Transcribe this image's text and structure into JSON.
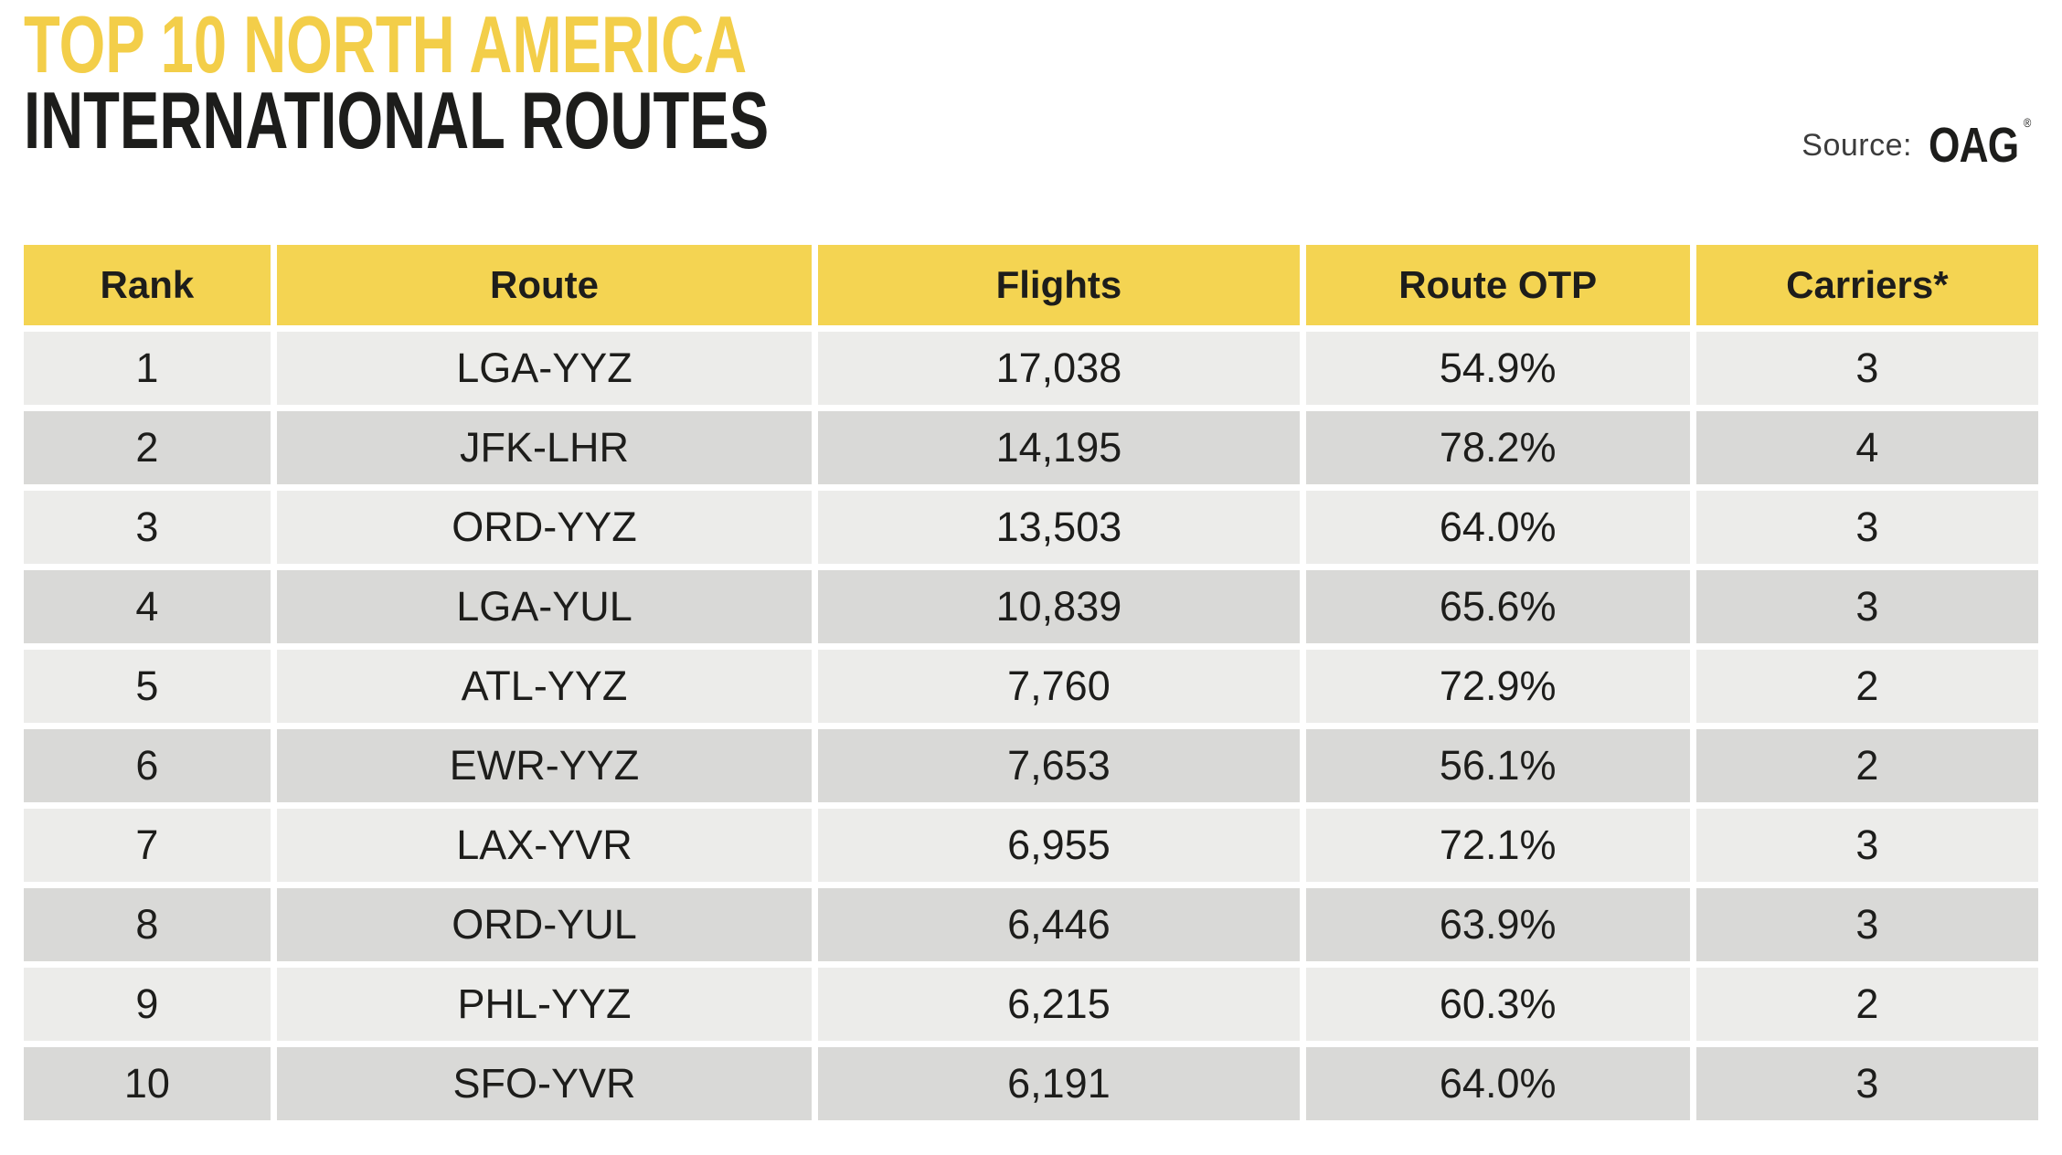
{
  "title": {
    "line1": "TOP 10 NORTH AMERICA",
    "line2": "INTERNATIONAL ROUTES"
  },
  "source": {
    "label": "Source:",
    "brand": "OAG",
    "mark": "®"
  },
  "chart_data": {
    "type": "table",
    "title": "Top 10 North America International Routes",
    "columns": [
      "Rank",
      "Route",
      "Flights",
      "Route OTP",
      "Carriers*"
    ],
    "rows": [
      [
        "1",
        "LGA-YYZ",
        "17,038",
        "54.9%",
        "3"
      ],
      [
        "2",
        "JFK-LHR",
        "14,195",
        "78.2%",
        "4"
      ],
      [
        "3",
        "ORD-YYZ",
        "13,503",
        "64.0%",
        "3"
      ],
      [
        "4",
        "LGA-YUL",
        "10,839",
        "65.6%",
        "3"
      ],
      [
        "5",
        "ATL-YYZ",
        "7,760",
        "72.9%",
        "2"
      ],
      [
        "6",
        "EWR-YYZ",
        "7,653",
        "56.1%",
        "2"
      ],
      [
        "7",
        "LAX-YVR",
        "6,955",
        "72.1%",
        "3"
      ],
      [
        "8",
        "ORD-YUL",
        "6,446",
        "63.9%",
        "3"
      ],
      [
        "9",
        "PHL-YYZ",
        "6,215",
        "60.3%",
        "2"
      ],
      [
        "10",
        "SFO-YVR",
        "6,191",
        "64.0%",
        "3"
      ]
    ],
    "source": "OAG",
    "layout": {
      "header_background": "#F4D452",
      "row_stripe_light": "#ECECEA",
      "row_stripe_dark": "#D9D9D7",
      "grid": "white gaps between cells"
    }
  },
  "colors": {
    "title_yellow": "#F3CE49",
    "header_yellow": "#F4D452",
    "row_light": "#ECECEA",
    "row_dark": "#D9D9D7",
    "text": "#1D1D1B",
    "background": "#FFFFFF"
  }
}
